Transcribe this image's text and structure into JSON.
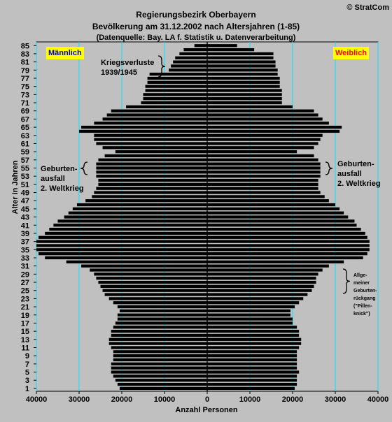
{
  "header": {
    "title": "Regierungsbezirk Oberbayern",
    "subtitle": "Bevölkerung am 31.12.2002 nach Altersjahren (1-85)",
    "source": "(Datenquelle: Bay. LA f. Statistik u. Datenverarbeitung)",
    "copyright": "© StratCom"
  },
  "legend": {
    "male": "Männlich",
    "female": "Weiblich"
  },
  "annotations": {
    "war_losses": "Kriegsverluste\n1939/1945",
    "birth_drop_left": "Geburten-\nausfall\n2. Weltkrieg",
    "birth_drop_right": "Geburten-\nausfall\n2. Weltkrieg",
    "pill_kink": "Allge-\nmeiner\nGeburten-\nrückgang\n(\"Pillen-\nknick\")"
  },
  "colors": {
    "background": "#c0c0c0",
    "bars": "#000000",
    "gridlines": "#00e5ff",
    "male_label": "#0000cc",
    "female_label": "#ff0000",
    "highlight": "#ffff00"
  },
  "chart_data": {
    "type": "bar",
    "orientation": "horizontal-population-pyramid",
    "xlabel": "Anzahl Personen",
    "ylabel": "Alter in Jahren",
    "xlim": [
      -40000,
      40000
    ],
    "x_tick_values": [
      -40000,
      -30000,
      -20000,
      -10000,
      0,
      10000,
      20000,
      30000,
      40000
    ],
    "x_tick_labels": [
      "40000",
      "30000",
      "20000",
      "10000",
      "0",
      "10000",
      "20000",
      "30000",
      "40000"
    ],
    "y_tick_labels": [
      "1",
      "3",
      "5",
      "7",
      "9",
      "11",
      "13",
      "15",
      "17",
      "19",
      "21",
      "23",
      "25",
      "27",
      "29",
      "31",
      "33",
      "35",
      "37",
      "39",
      "41",
      "43",
      "45",
      "47",
      "49",
      "51",
      "53",
      "55",
      "57",
      "59",
      "61",
      "63",
      "65",
      "67",
      "69",
      "71",
      "73",
      "75",
      "77",
      "79",
      "81",
      "83",
      "85"
    ],
    "grid": true,
    "ages": [
      1,
      2,
      3,
      4,
      5,
      6,
      7,
      8,
      9,
      10,
      11,
      12,
      13,
      14,
      15,
      16,
      17,
      18,
      19,
      20,
      21,
      22,
      23,
      24,
      25,
      26,
      27,
      28,
      29,
      30,
      31,
      32,
      33,
      34,
      35,
      36,
      37,
      38,
      39,
      40,
      41,
      42,
      43,
      44,
      45,
      46,
      47,
      48,
      49,
      50,
      51,
      52,
      53,
      54,
      55,
      56,
      57,
      58,
      59,
      60,
      61,
      62,
      63,
      64,
      65,
      66,
      67,
      68,
      69,
      70,
      71,
      72,
      73,
      74,
      75,
      76,
      77,
      78,
      79,
      80,
      81,
      82,
      83,
      84,
      85
    ],
    "series": [
      {
        "name": "Männlich",
        "values": [
          20500,
          21000,
          21500,
          22000,
          22500,
          22500,
          22500,
          22000,
          22000,
          22000,
          22500,
          23000,
          23000,
          22500,
          22500,
          22000,
          21500,
          21000,
          21000,
          20500,
          21000,
          22000,
          23000,
          24000,
          24500,
          25000,
          25500,
          26000,
          26500,
          27500,
          29500,
          33000,
          38000,
          39500,
          40000,
          40000,
          40000,
          39500,
          38000,
          37000,
          36000,
          35000,
          33500,
          32500,
          31500,
          30500,
          28500,
          27000,
          26500,
          26000,
          25500,
          25500,
          26000,
          26000,
          26000,
          26000,
          25500,
          24000,
          21500,
          24500,
          26000,
          26500,
          26500,
          30000,
          29500,
          26500,
          24500,
          23500,
          22500,
          19000,
          15500,
          15000,
          15000,
          14500,
          14500,
          14000,
          14000,
          13500,
          9000,
          8500,
          8000,
          7500,
          6500,
          5500,
          3000
        ]
      },
      {
        "name": "Weiblich",
        "values": [
          20500,
          21000,
          21000,
          21000,
          21500,
          21000,
          21000,
          21000,
          21000,
          21000,
          21500,
          22000,
          22000,
          21500,
          21500,
          21000,
          20000,
          20000,
          19500,
          19500,
          20500,
          21500,
          22500,
          23500,
          24500,
          25000,
          25500,
          25500,
          26000,
          27000,
          28500,
          32000,
          36500,
          37500,
          38000,
          38000,
          38000,
          37500,
          37000,
          36000,
          35000,
          34500,
          33000,
          32000,
          31000,
          30000,
          28500,
          27500,
          26500,
          26000,
          26000,
          26000,
          26500,
          26500,
          26500,
          26500,
          26000,
          25000,
          21000,
          25000,
          26000,
          26500,
          27000,
          31000,
          31500,
          28500,
          27000,
          26000,
          25000,
          20000,
          17500,
          17500,
          17500,
          17500,
          17000,
          17000,
          17000,
          16500,
          16500,
          16000,
          16000,
          15500,
          15500,
          11000,
          7000
        ]
      }
    ]
  }
}
